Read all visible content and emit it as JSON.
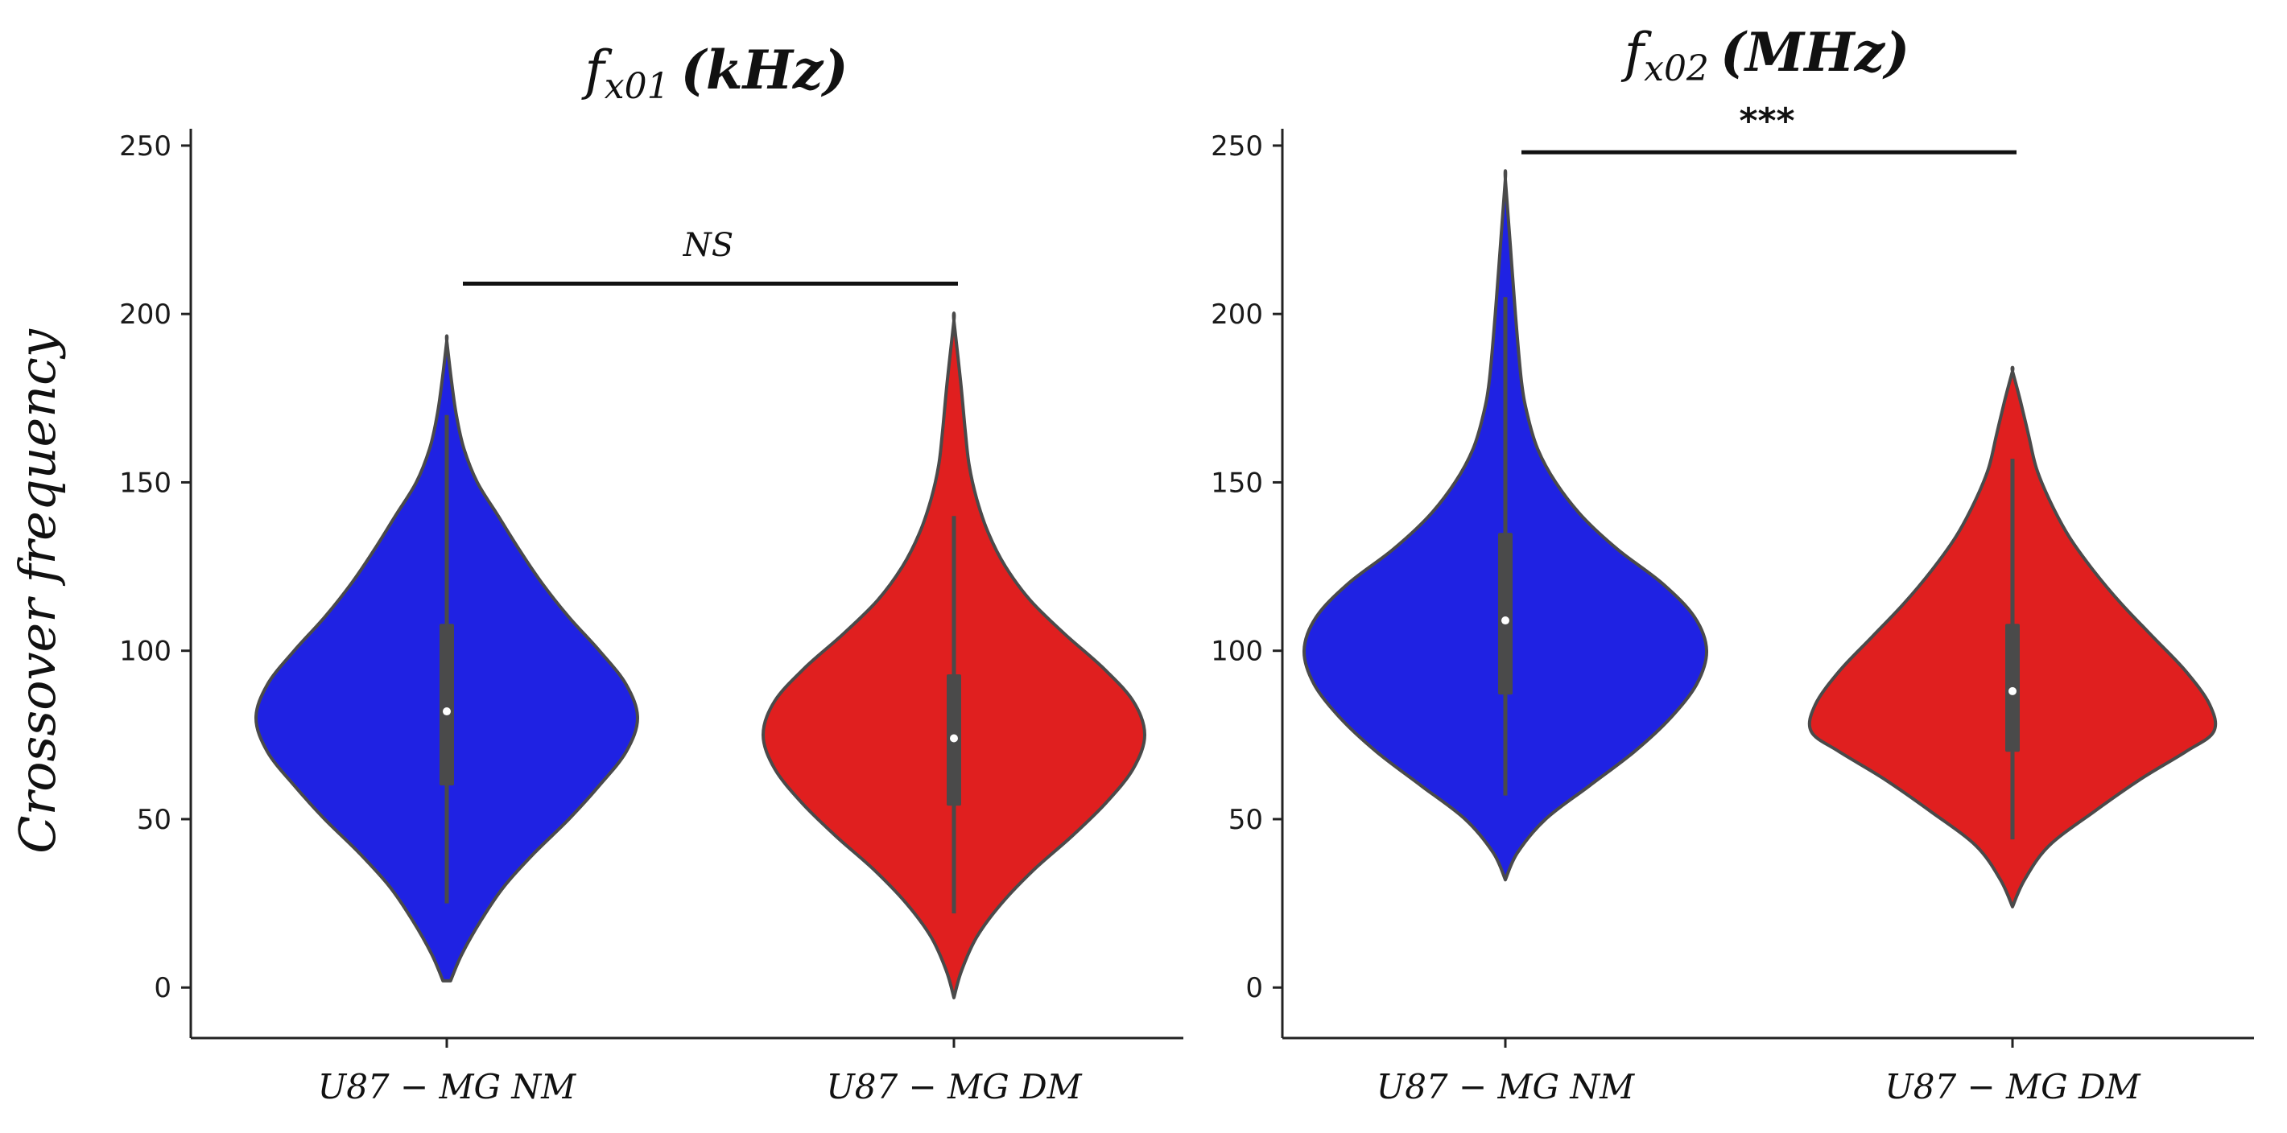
{
  "chart_data": {
    "type": "violin",
    "ylabel": "Crossover frequency",
    "panels": [
      {
        "title_main": "f",
        "title_sub": "x01",
        "title_unit": "(kHz)",
        "ylim": [
          -15,
          255
        ],
        "yticks": [
          0,
          50,
          100,
          150,
          200,
          250
        ],
        "categories": [
          "U87 − MG NM",
          "U87 − MG DM"
        ],
        "series": [
          {
            "name": "U87 − MG NM",
            "color": "#1f22e3",
            "min": 2,
            "max": 192,
            "q1": 60,
            "median": 82,
            "q3": 108,
            "whisker_low": 25,
            "whisker_high": 170,
            "mode": 80,
            "profile": [
              [
                2,
                0.02
              ],
              [
                10,
                0.08
              ],
              [
                20,
                0.18
              ],
              [
                30,
                0.3
              ],
              [
                40,
                0.46
              ],
              [
                50,
                0.64
              ],
              [
                60,
                0.8
              ],
              [
                70,
                0.94
              ],
              [
                80,
                1.0
              ],
              [
                90,
                0.94
              ],
              [
                100,
                0.8
              ],
              [
                110,
                0.64
              ],
              [
                120,
                0.5
              ],
              [
                130,
                0.38
              ],
              [
                140,
                0.27
              ],
              [
                150,
                0.16
              ],
              [
                160,
                0.09
              ],
              [
                170,
                0.05
              ],
              [
                180,
                0.025
              ],
              [
                192,
                0.0
              ]
            ]
          },
          {
            "name": "U87 − MG DM",
            "color": "#e01f1f",
            "min": -3,
            "max": 198,
            "q1": 54,
            "median": 74,
            "q3": 93,
            "whisker_low": 22,
            "whisker_high": 140,
            "mode": 75,
            "profile": [
              [
                -3,
                0.0
              ],
              [
                5,
                0.04
              ],
              [
                15,
                0.12
              ],
              [
                25,
                0.25
              ],
              [
                35,
                0.42
              ],
              [
                45,
                0.62
              ],
              [
                55,
                0.8
              ],
              [
                65,
                0.94
              ],
              [
                75,
                1.0
              ],
              [
                85,
                0.94
              ],
              [
                95,
                0.78
              ],
              [
                105,
                0.58
              ],
              [
                115,
                0.4
              ],
              [
                125,
                0.27
              ],
              [
                135,
                0.18
              ],
              [
                145,
                0.12
              ],
              [
                155,
                0.08
              ],
              [
                165,
                0.06
              ],
              [
                180,
                0.035
              ],
              [
                198,
                0.0
              ]
            ]
          }
        ],
        "annotation": {
          "text": "NS",
          "y": 209,
          "from": 0,
          "to": 1
        }
      },
      {
        "title_main": "f",
        "title_sub": "x02",
        "title_unit": "(MHz)",
        "ylim": [
          -15,
          255
        ],
        "yticks": [
          0,
          50,
          100,
          150,
          200,
          250
        ],
        "categories": [
          "U87 − MG NM",
          "U87 − MG DM"
        ],
        "series": [
          {
            "name": "U87 − MG NM",
            "color": "#1f22e3",
            "min": 32,
            "max": 240,
            "q1": 87,
            "median": 109,
            "q3": 135,
            "whisker_low": 57,
            "whisker_high": 205,
            "mode": 100,
            "profile": [
              [
                32,
                0.0
              ],
              [
                40,
                0.06
              ],
              [
                50,
                0.2
              ],
              [
                60,
                0.42
              ],
              [
                70,
                0.64
              ],
              [
                80,
                0.82
              ],
              [
                90,
                0.95
              ],
              [
                100,
                1.0
              ],
              [
                110,
                0.94
              ],
              [
                120,
                0.78
              ],
              [
                130,
                0.56
              ],
              [
                140,
                0.38
              ],
              [
                150,
                0.25
              ],
              [
                160,
                0.16
              ],
              [
                170,
                0.11
              ],
              [
                180,
                0.08
              ],
              [
                200,
                0.05
              ],
              [
                220,
                0.025
              ],
              [
                240,
                0.0
              ]
            ]
          },
          {
            "name": "U87 − MG DM",
            "color": "#e01f1f",
            "min": 24,
            "max": 183,
            "q1": 70,
            "median": 88,
            "q3": 108,
            "whisker_low": 44,
            "whisker_high": 157,
            "mode": 76,
            "profile": [
              [
                24,
                0.0
              ],
              [
                32,
                0.06
              ],
              [
                42,
                0.18
              ],
              [
                52,
                0.4
              ],
              [
                62,
                0.64
              ],
              [
                70,
                0.86
              ],
              [
                76,
                1.0
              ],
              [
                84,
                0.98
              ],
              [
                94,
                0.86
              ],
              [
                104,
                0.7
              ],
              [
                114,
                0.54
              ],
              [
                124,
                0.4
              ],
              [
                134,
                0.28
              ],
              [
                144,
                0.19
              ],
              [
                154,
                0.12
              ],
              [
                164,
                0.08
              ],
              [
                174,
                0.04
              ],
              [
                183,
                0.0
              ]
            ]
          }
        ],
        "annotation": {
          "text": "***",
          "y": 248,
          "from": 0,
          "to": 1
        }
      }
    ]
  }
}
